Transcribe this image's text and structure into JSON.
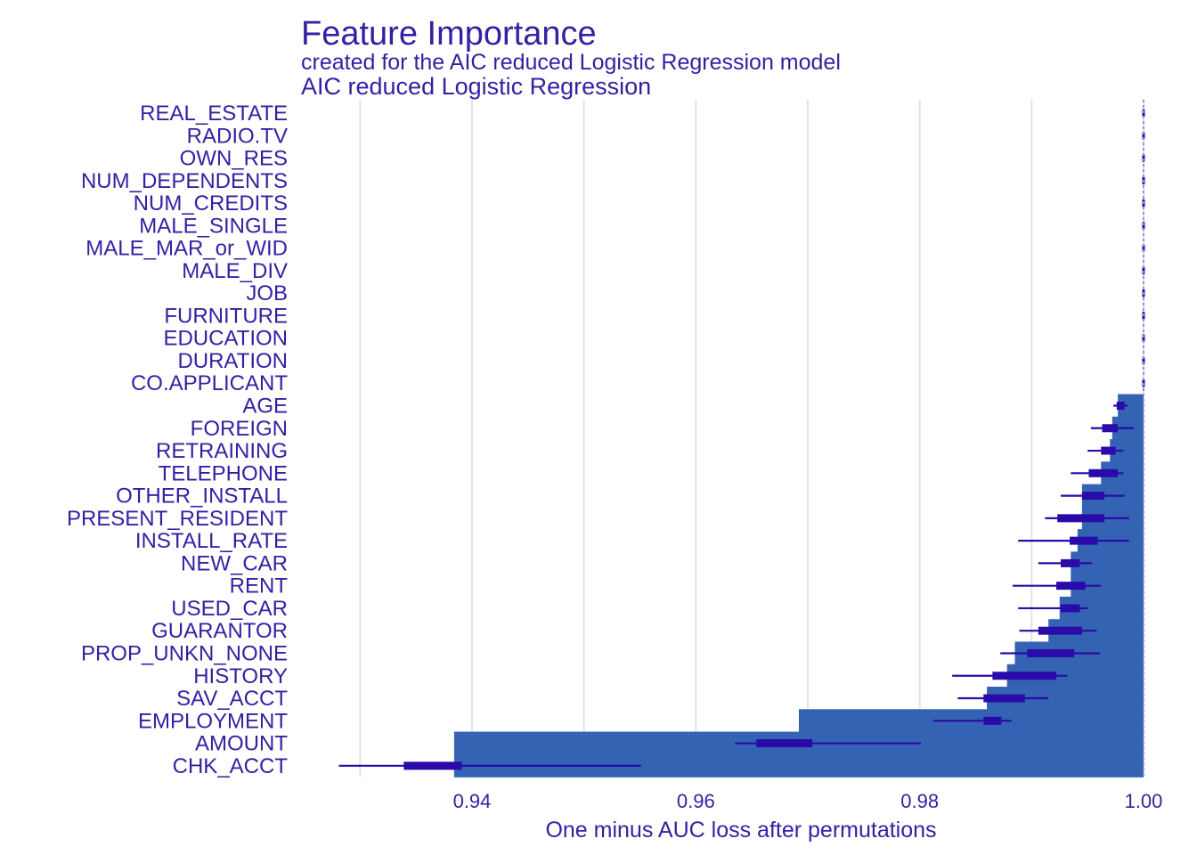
{
  "colors": {
    "text": "#371ea3",
    "bar": "#3563b3",
    "whisker": "#2a0aa8",
    "grid": "#e3e3e3",
    "baseline": "#8b93d8"
  },
  "chart_data": {
    "type": "bar",
    "orientation": "horizontal",
    "title": "Feature Importance",
    "subtitle": "created for the AIC reduced Logistic Regression model",
    "panel_label": "AIC reduced Logistic Regression",
    "xlabel": "One minus AUC loss after permutations",
    "ylabel": "",
    "xlim": [
      0.928,
      1.0
    ],
    "xticks": [
      0.94,
      0.96,
      0.98,
      1.0
    ],
    "xtick_labels": [
      "0.94",
      "0.96",
      "0.98",
      "1.00"
    ],
    "baseline": 1.0,
    "grid": true,
    "features": [
      {
        "name": "REAL_ESTATE",
        "value": 1.0,
        "box": [
          1.0,
          1.0
        ],
        "whisker": [
          1.0,
          1.0
        ]
      },
      {
        "name": "RADIO.TV",
        "value": 1.0,
        "box": [
          1.0,
          1.0
        ],
        "whisker": [
          1.0,
          1.0
        ]
      },
      {
        "name": "OWN_RES",
        "value": 1.0,
        "box": [
          1.0,
          1.0
        ],
        "whisker": [
          1.0,
          1.0
        ]
      },
      {
        "name": "NUM_DEPENDENTS",
        "value": 1.0,
        "box": [
          1.0,
          1.0
        ],
        "whisker": [
          1.0,
          1.0
        ]
      },
      {
        "name": "NUM_CREDITS",
        "value": 1.0,
        "box": [
          1.0,
          1.0
        ],
        "whisker": [
          1.0,
          1.0
        ]
      },
      {
        "name": "MALE_SINGLE",
        "value": 1.0,
        "box": [
          1.0,
          1.0
        ],
        "whisker": [
          1.0,
          1.0
        ]
      },
      {
        "name": "MALE_MAR_or_WID",
        "value": 1.0,
        "box": [
          1.0,
          1.0
        ],
        "whisker": [
          1.0,
          1.0
        ]
      },
      {
        "name": "MALE_DIV",
        "value": 1.0,
        "box": [
          1.0,
          1.0
        ],
        "whisker": [
          1.0,
          1.0
        ]
      },
      {
        "name": "JOB",
        "value": 1.0,
        "box": [
          1.0,
          1.0
        ],
        "whisker": [
          1.0,
          1.0
        ]
      },
      {
        "name": "FURNITURE",
        "value": 1.0,
        "box": [
          1.0,
          1.0
        ],
        "whisker": [
          1.0,
          1.0
        ]
      },
      {
        "name": "EDUCATION",
        "value": 1.0,
        "box": [
          1.0,
          1.0
        ],
        "whisker": [
          1.0,
          1.0
        ]
      },
      {
        "name": "DURATION",
        "value": 1.0,
        "box": [
          1.0,
          1.0
        ],
        "whisker": [
          1.0,
          1.0
        ]
      },
      {
        "name": "CO.APPLICANT",
        "value": 1.0,
        "box": [
          1.0,
          1.0
        ],
        "whisker": [
          1.0,
          1.0
        ]
      },
      {
        "name": "AGE",
        "value": 0.9977,
        "box": [
          0.9976,
          0.9983
        ],
        "whisker": [
          0.9973,
          0.9986
        ]
      },
      {
        "name": "FOREIGN",
        "value": 0.9972,
        "box": [
          0.9963,
          0.9977
        ],
        "whisker": [
          0.9953,
          0.9991
        ]
      },
      {
        "name": "RETRAINING",
        "value": 0.997,
        "box": [
          0.9962,
          0.9975
        ],
        "whisker": [
          0.995,
          0.9982
        ]
      },
      {
        "name": "TELEPHONE",
        "value": 0.9962,
        "box": [
          0.9951,
          0.9977
        ],
        "whisker": [
          0.9935,
          0.9982
        ]
      },
      {
        "name": "OTHER_INSTALL",
        "value": 0.9945,
        "box": [
          0.9945,
          0.9965
        ],
        "whisker": [
          0.9926,
          0.9983
        ]
      },
      {
        "name": "PRESENT_RESIDENT",
        "value": 0.9945,
        "box": [
          0.9923,
          0.9965
        ],
        "whisker": [
          0.9912,
          0.9987
        ]
      },
      {
        "name": "INSTALL_RATE",
        "value": 0.9941,
        "box": [
          0.9934,
          0.9959
        ],
        "whisker": [
          0.9888,
          0.9987
        ]
      },
      {
        "name": "NEW_CAR",
        "value": 0.9935,
        "box": [
          0.9926,
          0.9943
        ],
        "whisker": [
          0.9906,
          0.9954
        ]
      },
      {
        "name": "RENT",
        "value": 0.9935,
        "box": [
          0.9922,
          0.9948
        ],
        "whisker": [
          0.9883,
          0.9962
        ]
      },
      {
        "name": "USED_CAR",
        "value": 0.9925,
        "box": [
          0.9926,
          0.9943
        ],
        "whisker": [
          0.9888,
          0.995
        ]
      },
      {
        "name": "GUARANTOR",
        "value": 0.9915,
        "box": [
          0.9906,
          0.9945
        ],
        "whisker": [
          0.9889,
          0.9958
        ]
      },
      {
        "name": "PROP_UNKN_NONE",
        "value": 0.9885,
        "box": [
          0.9896,
          0.9938
        ],
        "whisker": [
          0.9872,
          0.9961
        ]
      },
      {
        "name": "HISTORY",
        "value": 0.9878,
        "box": [
          0.9865,
          0.9922
        ],
        "whisker": [
          0.9829,
          0.9932
        ]
      },
      {
        "name": "SAV_ACCT",
        "value": 0.986,
        "box": [
          0.9857,
          0.9894
        ],
        "whisker": [
          0.9834,
          0.9915
        ]
      },
      {
        "name": "EMPLOYMENT",
        "value": 0.9692,
        "box": [
          0.9857,
          0.9873
        ],
        "whisker": [
          0.9812,
          0.9882
        ]
      },
      {
        "name": "AMOUNT",
        "value": 0.9384,
        "box": [
          0.9654,
          0.9704
        ],
        "whisker": [
          0.9635,
          0.9801
        ]
      },
      {
        "name": "CHK_ACCT",
        "value": 0.9384,
        "box": [
          0.9339,
          0.9391
        ],
        "whisker": [
          0.9281,
          0.9551
        ]
      }
    ]
  }
}
